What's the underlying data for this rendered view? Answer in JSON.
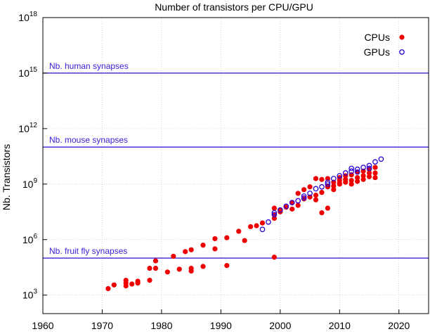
{
  "chart_data": {
    "type": "scatter",
    "title": "Number of transistors per CPU/GPU",
    "xlabel": "",
    "ylabel": "Nb. Transistors",
    "xlim": [
      1960,
      2025
    ],
    "ylim_log10": [
      2,
      18
    ],
    "y_scale": "log",
    "x_ticks": [
      1960,
      1970,
      1980,
      1990,
      2000,
      2010,
      2020
    ],
    "y_ticks": [
      {
        "base": "10",
        "exp": "3"
      },
      {
        "base": "10",
        "exp": "6"
      },
      {
        "base": "10",
        "exp": "9"
      },
      {
        "base": "10",
        "exp": "12"
      },
      {
        "base": "10",
        "exp": "15"
      },
      {
        "base": "10",
        "exp": "18"
      }
    ],
    "grid": true,
    "legend_position": "top-right",
    "colors": {
      "cpu": "#ee0000",
      "gpu": "#2a00d5",
      "reference_lines": "#3a22d8",
      "grid": "#bbbbbb"
    },
    "reference_lines": [
      {
        "label": "Nb. human synapses",
        "log10": 15
      },
      {
        "label": "Nb. mouse synapses",
        "log10": 11
      },
      {
        "label": "Nb. fruit fly synapses",
        "log10": 5
      }
    ],
    "series": [
      {
        "name": "CPUs",
        "marker": "filled-circle",
        "points": [
          [
            1971,
            3.35
          ],
          [
            1972,
            3.55
          ],
          [
            1974,
            3.65
          ],
          [
            1974,
            3.8
          ],
          [
            1974,
            3.5
          ],
          [
            1975,
            3.6
          ],
          [
            1976,
            3.75
          ],
          [
            1976,
            3.65
          ],
          [
            1978,
            3.8
          ],
          [
            1978,
            4.45
          ],
          [
            1979,
            4.45
          ],
          [
            1979,
            4.85
          ],
          [
            1981,
            4.25
          ],
          [
            1982,
            5.1
          ],
          [
            1983,
            4.4
          ],
          [
            1984,
            5.35
          ],
          [
            1985,
            5.45
          ],
          [
            1985,
            4.45
          ],
          [
            1985,
            4.3
          ],
          [
            1987,
            4.55
          ],
          [
            1987,
            5.7
          ],
          [
            1989,
            5.5
          ],
          [
            1989,
            6.05
          ],
          [
            1991,
            4.6
          ],
          [
            1991,
            6.1
          ],
          [
            1993,
            6.45
          ],
          [
            1994,
            5.95
          ],
          [
            1995,
            6.7
          ],
          [
            1996,
            6.75
          ],
          [
            1997,
            6.9
          ],
          [
            1999,
            7.35
          ],
          [
            1999,
            7.15
          ],
          [
            1999,
            5.05
          ],
          [
            1999,
            7.7
          ],
          [
            2000,
            7.5
          ],
          [
            2000,
            7.6
          ],
          [
            2001,
            7.75
          ],
          [
            2002,
            8.0
          ],
          [
            2002,
            7.65
          ],
          [
            2003,
            8.5
          ],
          [
            2003,
            7.85
          ],
          [
            2004,
            8.7
          ],
          [
            2004,
            8.2
          ],
          [
            2005,
            8.85
          ],
          [
            2005,
            8.3
          ],
          [
            2006,
            8.4
          ],
          [
            2006,
            8.15
          ],
          [
            2006,
            9.3
          ],
          [
            2007,
            9.25
          ],
          [
            2007,
            8.55
          ],
          [
            2007,
            7.45
          ],
          [
            2008,
            9.3
          ],
          [
            2008,
            8.85
          ],
          [
            2008,
            8.9
          ],
          [
            2008,
            7.7
          ],
          [
            2009,
            8.9
          ],
          [
            2009,
            9.1
          ],
          [
            2009,
            8.7
          ],
          [
            2010,
            9.2
          ],
          [
            2010,
            9.35
          ],
          [
            2010,
            9.05
          ],
          [
            2010,
            9.0
          ],
          [
            2011,
            9.45
          ],
          [
            2011,
            9.25
          ],
          [
            2011,
            9.1
          ],
          [
            2012,
            9.5
          ],
          [
            2012,
            9.2
          ],
          [
            2012,
            9.0
          ],
          [
            2013,
            9.65
          ],
          [
            2013,
            9.35
          ],
          [
            2013,
            9.15
          ],
          [
            2014,
            9.7
          ],
          [
            2014,
            9.45
          ],
          [
            2014,
            9.25
          ],
          [
            2015,
            9.8
          ],
          [
            2015,
            9.6
          ],
          [
            2015,
            9.4
          ],
          [
            2016,
            9.9
          ],
          [
            2016,
            9.6
          ],
          [
            2016,
            9.35
          ]
        ]
      },
      {
        "name": "GPUs",
        "marker": "open-circle",
        "points": [
          [
            1997,
            6.55
          ],
          [
            1998,
            6.95
          ],
          [
            1999,
            7.45
          ],
          [
            1999,
            7.35
          ],
          [
            2000,
            7.6
          ],
          [
            2001,
            7.8
          ],
          [
            2002,
            8.0
          ],
          [
            2003,
            8.1
          ],
          [
            2004,
            8.35
          ],
          [
            2004,
            8.25
          ],
          [
            2005,
            8.5
          ],
          [
            2006,
            8.75
          ],
          [
            2007,
            8.85
          ],
          [
            2008,
            9.1
          ],
          [
            2008,
            9.0
          ],
          [
            2009,
            9.3
          ],
          [
            2010,
            9.45
          ],
          [
            2011,
            9.6
          ],
          [
            2012,
            9.85
          ],
          [
            2012,
            9.7
          ],
          [
            2013,
            9.8
          ],
          [
            2013,
            9.65
          ],
          [
            2014,
            9.9
          ],
          [
            2015,
            10.0
          ],
          [
            2015,
            9.85
          ],
          [
            2016,
            10.2
          ],
          [
            2017,
            10.35
          ]
        ]
      }
    ]
  }
}
